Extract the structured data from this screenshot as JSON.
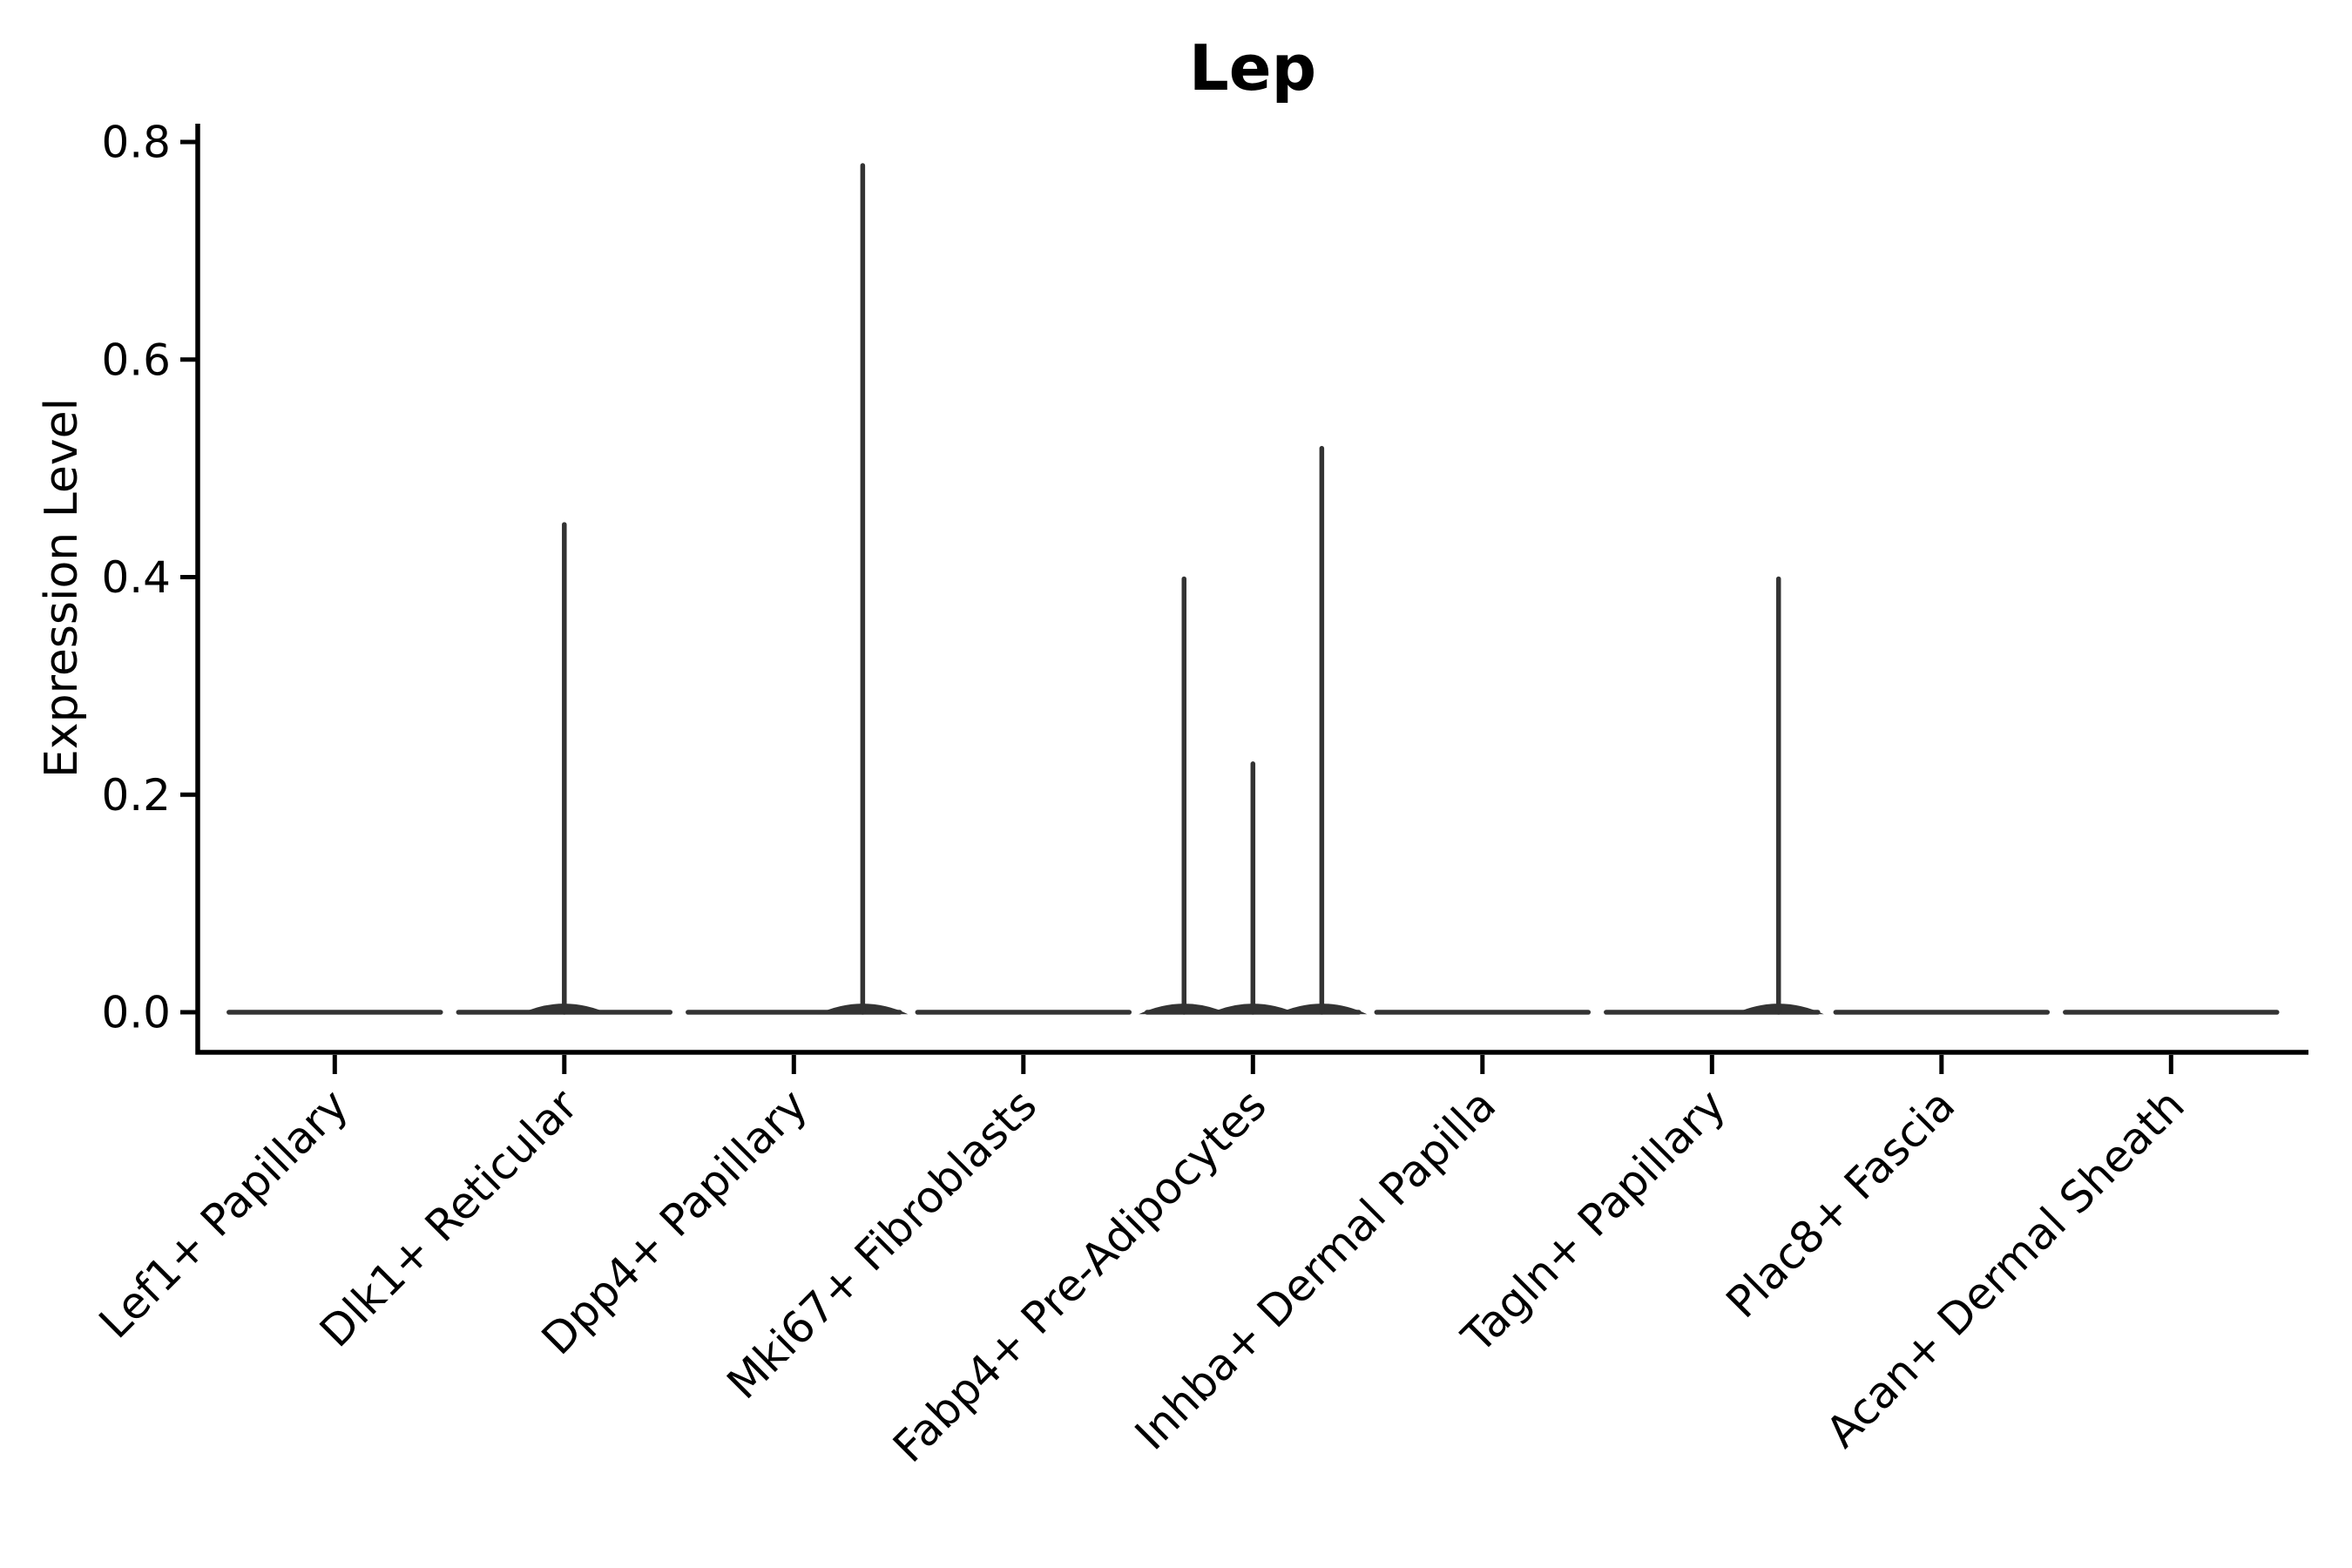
{
  "chart_data": {
    "type": "violin",
    "title": "Lep",
    "xlabel": "",
    "ylabel": "Expression Level",
    "ylim": [
      0,
      0.8
    ],
    "yticks": [
      0.0,
      0.2,
      0.4,
      0.6,
      0.8
    ],
    "grid": false,
    "legend": "none",
    "categories": [
      "Lef1+ Papillary",
      "Dlk1+ Reticular",
      "Dpp4+ Papillary",
      "Mki67+ Fibroblasts",
      "Fabp4+ Pre-Adipocytes",
      "Inhba+ Dermal Papilla",
      "Tagln+ Papillary",
      "Plac8+ Fascia",
      "Acan+ Dermal Sheath"
    ],
    "violins": [
      {
        "category": "Lef1+ Papillary",
        "baseline_value": 0.0,
        "spikes": []
      },
      {
        "category": "Dlk1+ Reticular",
        "baseline_value": 0.0,
        "spikes": [
          {
            "offset_frac": 0.0,
            "value": 0.45
          }
        ]
      },
      {
        "category": "Dpp4+ Papillary",
        "baseline_value": 0.0,
        "spikes": [
          {
            "offset_frac": 0.3,
            "value": 0.78
          }
        ]
      },
      {
        "category": "Mki67+ Fibroblasts",
        "baseline_value": 0.0,
        "spikes": []
      },
      {
        "category": "Fabp4+ Pre-Adipocytes",
        "baseline_value": 0.0,
        "spikes": [
          {
            "offset_frac": -0.3,
            "value": 0.4
          },
          {
            "offset_frac": 0.0,
            "value": 0.23
          },
          {
            "offset_frac": 0.3,
            "value": 0.52
          }
        ]
      },
      {
        "category": "Inhba+ Dermal Papilla",
        "baseline_value": 0.0,
        "spikes": []
      },
      {
        "category": "Tagln+ Papillary",
        "baseline_value": 0.0,
        "spikes": [
          {
            "offset_frac": 0.29,
            "value": 0.4
          }
        ]
      },
      {
        "category": "Plac8+ Fascia",
        "baseline_value": 0.0,
        "spikes": []
      },
      {
        "category": "Acan+ Dermal Sheath",
        "baseline_value": 0.0,
        "spikes": []
      }
    ],
    "violin_color": "#333333",
    "axis_color": "#000000"
  }
}
